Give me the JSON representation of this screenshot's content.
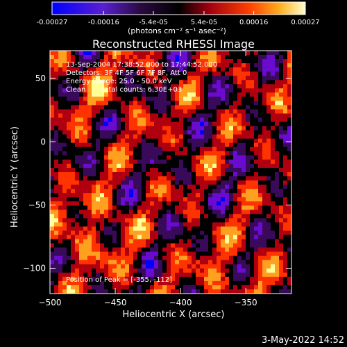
{
  "colorbar": {
    "tick_labels": [
      "-0.00027",
      "-0.00016",
      "-5.4e-05",
      "5.4e-05",
      "0.00016",
      "0.00027"
    ],
    "tick_values": [
      -0.00027,
      -0.00016,
      -5.4e-05,
      5.4e-05,
      0.00016,
      0.00027
    ],
    "range": [
      -0.00027,
      0.00027
    ],
    "units_label": "(photons cm⁻² s⁻¹ asec⁻²)"
  },
  "annotations": {
    "time_range": "13-Sep-2004 17:38:52.000 to 17:44:52.000",
    "detectors": "Detectors: 3F 4F 5F 6F 7F 8F, Att 0",
    "energy_range": "Energy Range: 25.0 - 50.0 keV",
    "clean_label": "Clean",
    "total_counts": "Total counts: 6.30E+03",
    "peak_position": "Position of Peak = [-355, -112]"
  },
  "footer": {
    "timestamp": "3-May-2022 14:52"
  },
  "chart_data": {
    "type": "heatmap",
    "title": "Reconstructed RHESSI Image",
    "xlabel": "Heliocentric X (arcsec)",
    "ylabel": "Heliocentric Y (arcsec)",
    "xlim": [
      -500,
      -315
    ],
    "ylim": [
      -120,
      72
    ],
    "x_ticks": [
      -500,
      -450,
      -400,
      -350
    ],
    "x_tick_labels": [
      "−500",
      "−450",
      "−400",
      "−350"
    ],
    "y_ticks": [
      50,
      0,
      -50,
      -100
    ],
    "y_tick_labels": [
      "50",
      "0",
      "−50",
      "−100"
    ],
    "colormap": [
      "#0000ff",
      "#6a0bd0",
      "#3a0a5a",
      "#000000",
      "#b00010",
      "#ff3300",
      "#ffa020",
      "#ffff99"
    ],
    "peak": [
      -355,
      -112
    ]
  }
}
